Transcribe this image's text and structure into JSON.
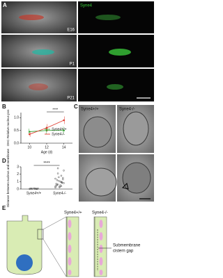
{
  "panels": {
    "a": {
      "label": "A",
      "channel": "Syne4",
      "ages": [
        "E16",
        "P1",
        "P21"
      ]
    },
    "b": {
      "label": "B"
    },
    "c": {
      "label": "C",
      "genotypes": [
        "Syne4+/+",
        "Syne4-/-"
      ]
    },
    "d": {
      "label": "D"
    },
    "e": {
      "label": "E",
      "genotypes": [
        "Syne4+/+",
        "Syne4-/-"
      ],
      "gap_label": [
        "Submembrane",
        "cistern gap"
      ]
    }
  },
  "chart_data": [
    {
      "type": "line",
      "xlabel": "Age (d)",
      "ylabel": "OHC Relative nucleus pos",
      "x": [
        10,
        12,
        14
      ],
      "xlim": [
        9,
        15
      ],
      "xticks": [
        10,
        12,
        14
      ],
      "ylim": [
        0,
        1.2
      ],
      "yticks": [
        {
          "value": 0,
          "label": "0.0"
        },
        0.5,
        {
          "value": 1,
          "label": "1.0"
        }
      ],
      "annotation": "****",
      "series": [
        {
          "name": "Syne4+/+",
          "color": "#3aa63a",
          "values": [
            0.45,
            0.5,
            0.5
          ],
          "errors": [
            0.12,
            0.15,
            0.15
          ]
        },
        {
          "name": "Syne4-/-",
          "color": "#e03b2f",
          "values": [
            0.35,
            0.6,
            0.9
          ],
          "errors": [
            0.1,
            0.15,
            0.15
          ]
        }
      ]
    },
    {
      "type": "strip",
      "ylabel": "Distance between nucleus and membrane",
      "categories": [
        "Syne4+/+",
        "Syne4-/-"
      ],
      "ylim": [
        0,
        3
      ],
      "yticks": [
        0,
        1,
        2,
        3
      ],
      "annotation": "****",
      "series": [
        {
          "name": "Syne4+/+",
          "color": "#222222",
          "values": [
            0.02,
            0.05,
            0.03,
            0.08,
            0.04,
            0.06,
            0.01,
            0.1,
            0.05,
            0.03
          ]
        },
        {
          "name": "Syne4-/-",
          "color": "#222222",
          "values": [
            0.2,
            0.4,
            0.6,
            0.8,
            1.0,
            1.2,
            1.5,
            0.3,
            0.7,
            0.9,
            1.1,
            1.4,
            1.8,
            2.1,
            2.5,
            0.5,
            0.6,
            1.3,
            0.25,
            0.45,
            0.85,
            1.6,
            0.35,
            0.95,
            2.8
          ]
        }
      ]
    }
  ]
}
